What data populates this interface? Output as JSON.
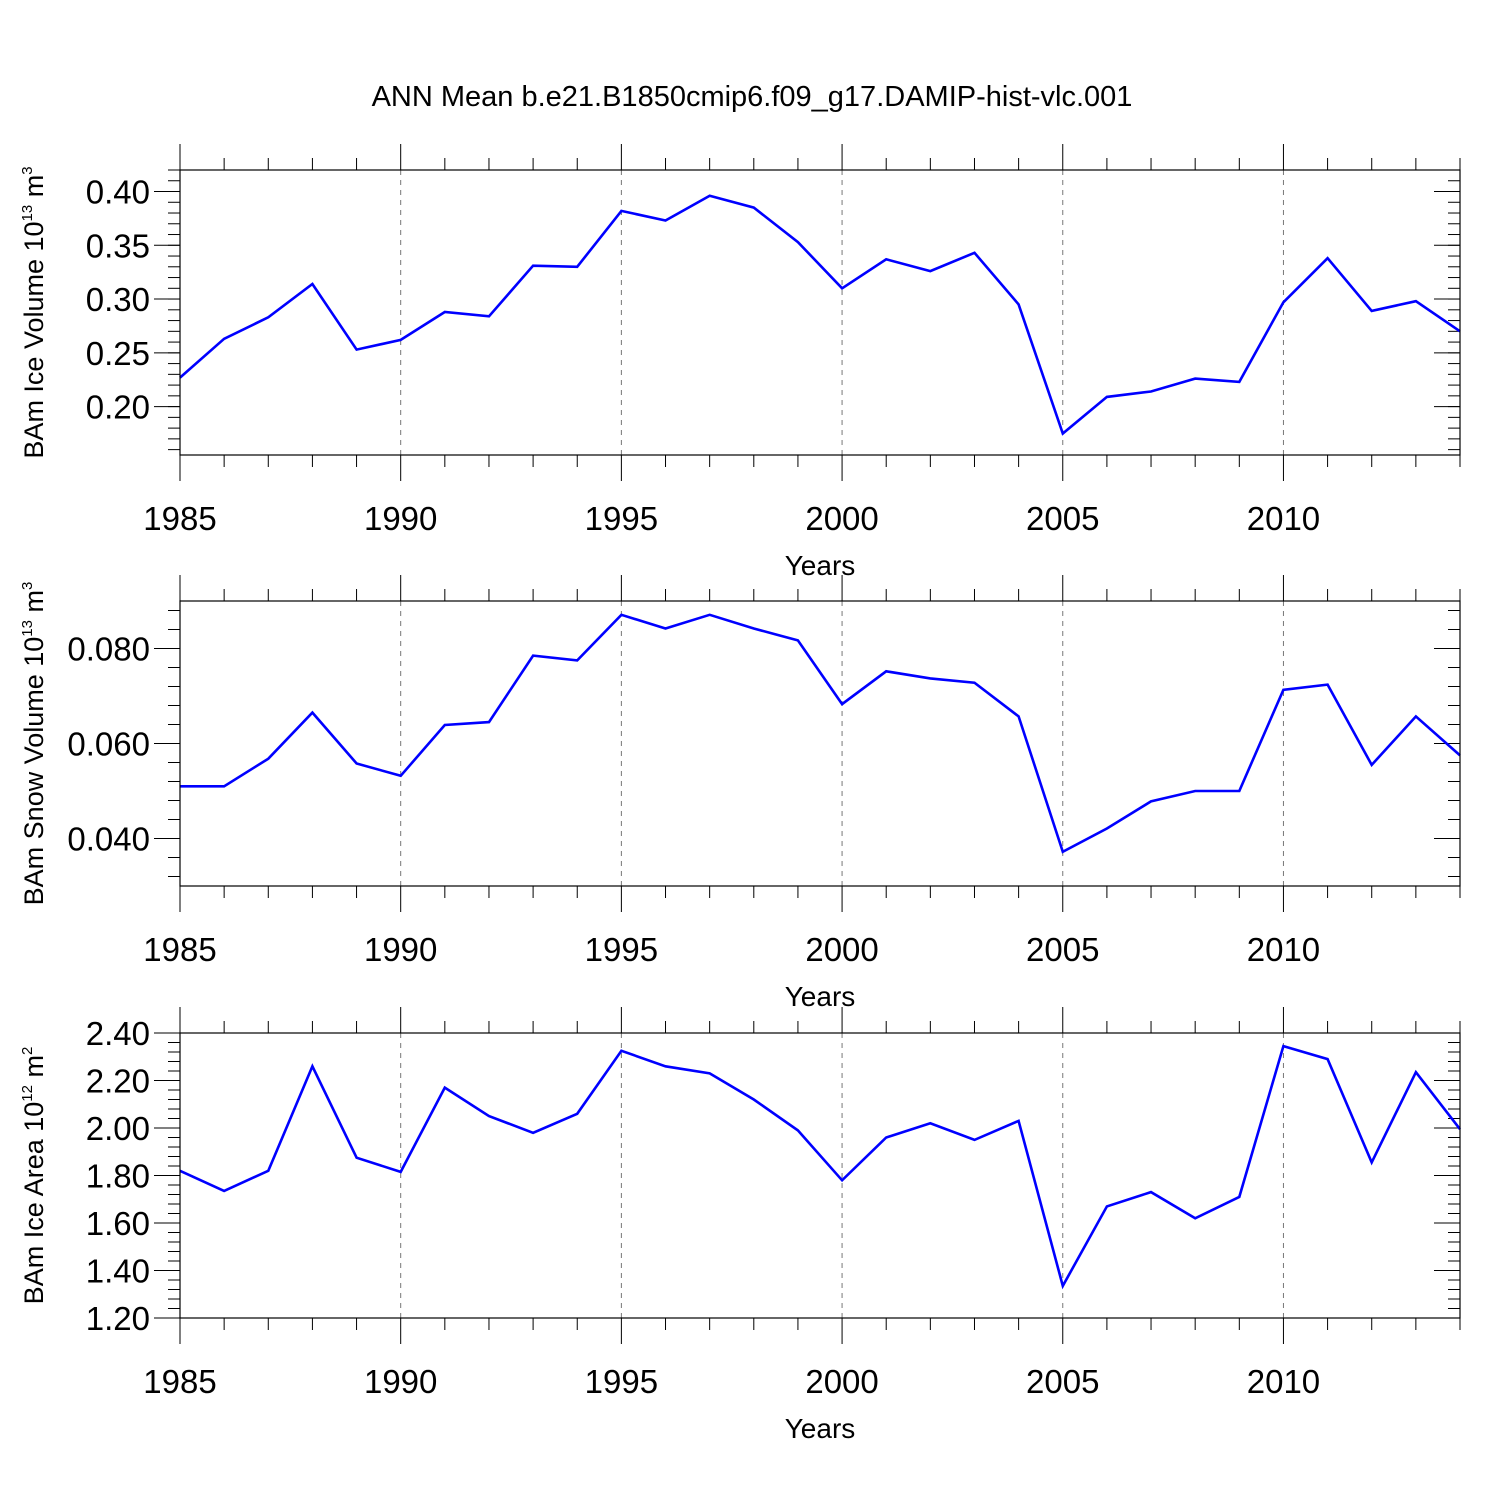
{
  "title": "ANN Mean b.e21.B1850cmip6.f09_g17.DAMIP-hist-vlc.001",
  "colors": {
    "line": "#0000ff",
    "axis": "#000000",
    "grid": "#777777"
  },
  "chart_data": [
    {
      "type": "line",
      "ylabel_main": "BAm Ice Volume 10",
      "ylabel_exp": "13",
      "ylabel_unit": "m",
      "ylabel_unit_exp": "3",
      "xlabel": "Years",
      "xlim": [
        1985,
        2014
      ],
      "ylim": [
        0.155,
        0.42
      ],
      "yticks": [
        "0.20",
        "0.25",
        "0.30",
        "0.35",
        "0.40"
      ],
      "xticks": [
        "1985",
        "1990",
        "1995",
        "2000",
        "2005",
        "2010"
      ],
      "grid": "vertical dashed at major x ticks",
      "x": [
        1985,
        1986,
        1987,
        1988,
        1989,
        1990,
        1991,
        1992,
        1993,
        1994,
        1995,
        1996,
        1997,
        1998,
        1999,
        2000,
        2001,
        2002,
        2003,
        2004,
        2005,
        2006,
        2007,
        2008,
        2009,
        2010,
        2011,
        2012,
        2013,
        2014
      ],
      "values": [
        0.227,
        0.263,
        0.283,
        0.314,
        0.253,
        0.262,
        0.288,
        0.284,
        0.331,
        0.33,
        0.382,
        0.373,
        0.396,
        0.385,
        0.353,
        0.31,
        0.337,
        0.326,
        0.343,
        0.295,
        0.175,
        0.209,
        0.214,
        0.226,
        0.223,
        0.297,
        0.338,
        0.289,
        0.298,
        0.27
      ]
    },
    {
      "type": "line",
      "ylabel_main": "BAm Snow Volume 10",
      "ylabel_exp": "13",
      "ylabel_unit": "m",
      "ylabel_unit_exp": "3",
      "xlabel": "Years",
      "xlim": [
        1985,
        2014
      ],
      "ylim": [
        0.03,
        0.09
      ],
      "yticks": [
        "0.040",
        "0.060",
        "0.080"
      ],
      "xticks": [
        "1985",
        "1990",
        "1995",
        "2000",
        "2005",
        "2010"
      ],
      "grid": "vertical dashed at major x ticks",
      "x": [
        1985,
        1986,
        1987,
        1988,
        1989,
        1990,
        1991,
        1992,
        1993,
        1994,
        1995,
        1996,
        1997,
        1998,
        1999,
        2000,
        2001,
        2002,
        2003,
        2004,
        2005,
        2006,
        2007,
        2008,
        2009,
        2010,
        2011,
        2012,
        2013,
        2014
      ],
      "values": [
        0.051,
        0.051,
        0.0568,
        0.0665,
        0.0558,
        0.0532,
        0.0639,
        0.0645,
        0.0785,
        0.0775,
        0.0871,
        0.0842,
        0.0871,
        0.0842,
        0.0817,
        0.0683,
        0.0752,
        0.0737,
        0.0728,
        0.0657,
        0.0372,
        0.0421,
        0.0478,
        0.05,
        0.05,
        0.0713,
        0.0724,
        0.0555,
        0.0657,
        0.0575
      ]
    },
    {
      "type": "line",
      "ylabel_main": "BAm Ice Area 10",
      "ylabel_exp": "12",
      "ylabel_unit": "m",
      "ylabel_unit_exp": "2",
      "xlabel": "Years",
      "xlim": [
        1985,
        2014
      ],
      "ylim": [
        1.2,
        2.4
      ],
      "yticks": [
        "1.20",
        "1.40",
        "1.60",
        "1.80",
        "2.00",
        "2.20",
        "2.40"
      ],
      "xticks": [
        "1985",
        "1990",
        "1995",
        "2000",
        "2005",
        "2010"
      ],
      "grid": "vertical dashed at major x ticks",
      "x": [
        1985,
        1986,
        1987,
        1988,
        1989,
        1990,
        1991,
        1992,
        1993,
        1994,
        1995,
        1996,
        1997,
        1998,
        1999,
        2000,
        2001,
        2002,
        2003,
        2004,
        2005,
        2006,
        2007,
        2008,
        2009,
        2010,
        2011,
        2012,
        2013,
        2014
      ],
      "values": [
        1.82,
        1.735,
        1.82,
        2.26,
        1.875,
        1.815,
        2.17,
        2.05,
        1.98,
        2.06,
        2.325,
        2.26,
        2.23,
        2.12,
        1.99,
        1.78,
        1.96,
        2.02,
        1.95,
        2.03,
        1.335,
        1.67,
        1.73,
        1.62,
        1.71,
        2.345,
        2.29,
        1.855,
        2.235,
        1.995
      ]
    }
  ]
}
